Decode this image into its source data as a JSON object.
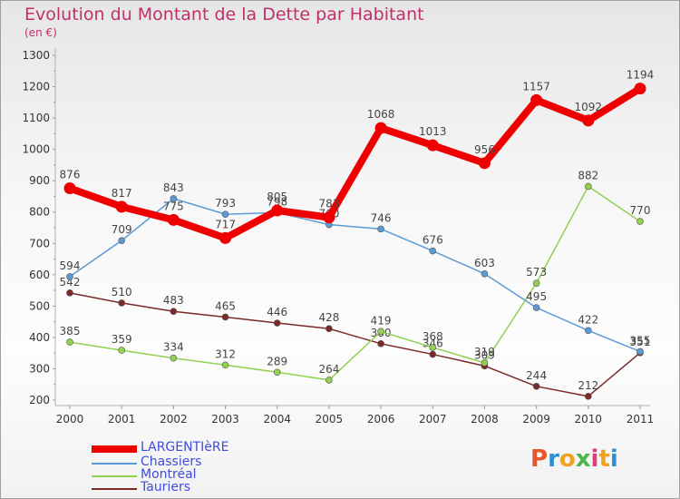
{
  "chart_data": {
    "type": "line",
    "title": "Evolution du Montant de la Dette par Habitant",
    "subtitle": "(en €)",
    "categories": [
      "2000",
      "2001",
      "2002",
      "2003",
      "2004",
      "2005",
      "2006",
      "2007",
      "2008",
      "2009",
      "2010",
      "2011"
    ],
    "ylim": [
      200,
      1300
    ],
    "yticks": [
      200,
      300,
      400,
      500,
      600,
      700,
      800,
      900,
      1000,
      1100,
      1200,
      1300
    ],
    "grid": false,
    "legend_position": "bottom-left",
    "series": [
      {
        "name": "LARGENTIèRE",
        "color": "#ee0000",
        "values": [
          876,
          817,
          775,
          717,
          805,
          783,
          1068,
          1013,
          956,
          1157,
          1092,
          1194
        ]
      },
      {
        "name": "Chassiers",
        "color": "#5b9bd5",
        "values": [
          594,
          709,
          843,
          793,
          798,
          760,
          746,
          676,
          603,
          495,
          422,
          355
        ]
      },
      {
        "name": "Montréal",
        "color": "#92d050",
        "values": [
          385,
          359,
          334,
          312,
          289,
          264,
          419,
          368,
          319,
          573,
          882,
          770
        ]
      },
      {
        "name": "Tauriers",
        "color": "#7b2a2a",
        "values": [
          542,
          510,
          483,
          465,
          446,
          428,
          380,
          346,
          309,
          244,
          212,
          351
        ]
      }
    ]
  },
  "logo": {
    "text": "Proxiti"
  }
}
